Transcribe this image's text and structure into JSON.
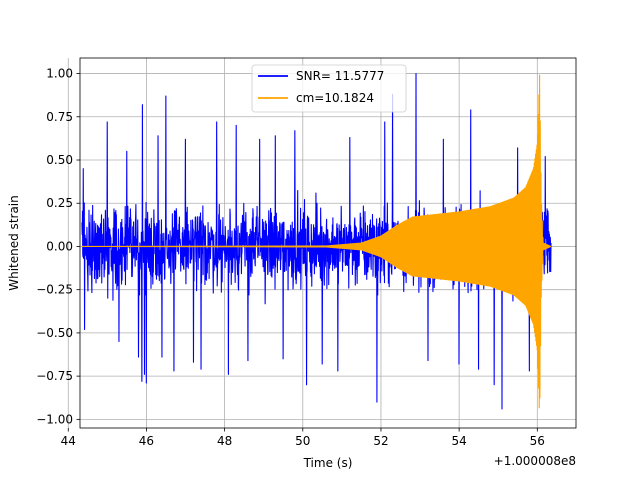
{
  "chart_data": {
    "type": "line",
    "title": "",
    "xlabel": "Time (s)",
    "ylabel": "Whitened strain",
    "offset_label": "+1.000008e8",
    "xlim": [
      44.3,
      56.99
    ],
    "ylim": [
      -1.05,
      1.09
    ],
    "xticks": [
      44,
      46,
      48,
      50,
      52,
      54,
      56
    ],
    "yticks": [
      -1.0,
      -0.75,
      -0.5,
      -0.25,
      0.0,
      0.25,
      0.5,
      0.75,
      1.0
    ],
    "ytick_labels": [
      "−1.00",
      "−0.75",
      "−0.50",
      "−0.25",
      "0.00",
      "0.25",
      "0.50",
      "0.75",
      "1.00"
    ],
    "grid": true,
    "legend_position": "upper center",
    "data_range": [
      44.35,
      56.35
    ],
    "series": [
      {
        "name": "SNR= 11.5777",
        "color": "#0000ff",
        "style": "noise",
        "envelope_typical": 0.42,
        "max": 1.0,
        "min": -0.94,
        "peaks": [
          {
            "x": 44.38,
            "y": 0.45
          },
          {
            "x": 44.42,
            "y": -0.48
          },
          {
            "x": 45.0,
            "y": 0.72
          },
          {
            "x": 45.3,
            "y": -0.55
          },
          {
            "x": 45.5,
            "y": 0.55
          },
          {
            "x": 45.8,
            "y": -0.64
          },
          {
            "x": 45.88,
            "y": -0.78
          },
          {
            "x": 45.9,
            "y": 0.82
          },
          {
            "x": 45.95,
            "y": -0.74
          },
          {
            "x": 46.0,
            "y": -0.79
          },
          {
            "x": 46.3,
            "y": 0.64
          },
          {
            "x": 46.4,
            "y": -0.64
          },
          {
            "x": 46.5,
            "y": 0.87
          },
          {
            "x": 46.7,
            "y": -0.72
          },
          {
            "x": 47.0,
            "y": 0.62
          },
          {
            "x": 47.2,
            "y": -0.67
          },
          {
            "x": 47.4,
            "y": -0.71
          },
          {
            "x": 47.8,
            "y": 0.72
          },
          {
            "x": 48.1,
            "y": -0.74
          },
          {
            "x": 48.3,
            "y": 0.7
          },
          {
            "x": 48.6,
            "y": -0.66
          },
          {
            "x": 48.9,
            "y": 0.62
          },
          {
            "x": 49.3,
            "y": 0.64
          },
          {
            "x": 49.5,
            "y": -0.65
          },
          {
            "x": 49.8,
            "y": 0.67
          },
          {
            "x": 50.1,
            "y": -0.8
          },
          {
            "x": 50.5,
            "y": -0.68
          },
          {
            "x": 50.9,
            "y": -0.72
          },
          {
            "x": 51.2,
            "y": 0.63
          },
          {
            "x": 51.9,
            "y": -0.9
          },
          {
            "x": 52.1,
            "y": 0.72
          },
          {
            "x": 52.3,
            "y": 0.88
          },
          {
            "x": 52.9,
            "y": 1.0
          },
          {
            "x": 53.2,
            "y": -0.66
          },
          {
            "x": 53.6,
            "y": 0.62
          },
          {
            "x": 54.0,
            "y": -0.68
          },
          {
            "x": 54.3,
            "y": 0.79
          },
          {
            "x": 54.5,
            "y": -0.71
          },
          {
            "x": 54.9,
            "y": -0.8
          },
          {
            "x": 55.1,
            "y": -0.94
          },
          {
            "x": 55.5,
            "y": 0.57
          },
          {
            "x": 55.8,
            "y": -0.72
          },
          {
            "x": 56.2,
            "y": 0.52
          }
        ]
      },
      {
        "name": "cm=10.1824",
        "color": "#ffa500",
        "style": "chirp",
        "envelope": [
          {
            "x": 44.35,
            "y": 0.0
          },
          {
            "x": 50.6,
            "y": 0.003
          },
          {
            "x": 51.5,
            "y": 0.02
          },
          {
            "x": 52.0,
            "y": 0.06
          },
          {
            "x": 52.4,
            "y": 0.12
          },
          {
            "x": 52.8,
            "y": 0.17
          },
          {
            "x": 53.2,
            "y": 0.18
          },
          {
            "x": 54.0,
            "y": 0.2
          },
          {
            "x": 54.8,
            "y": 0.23
          },
          {
            "x": 55.4,
            "y": 0.28
          },
          {
            "x": 55.7,
            "y": 0.34
          },
          {
            "x": 55.9,
            "y": 0.45
          },
          {
            "x": 56.0,
            "y": 0.6
          },
          {
            "x": 56.06,
            "y": 1.0
          },
          {
            "x": 56.1,
            "y": 0.3
          },
          {
            "x": 56.15,
            "y": 0.02
          },
          {
            "x": 56.35,
            "y": 0.0
          }
        ]
      }
    ]
  }
}
